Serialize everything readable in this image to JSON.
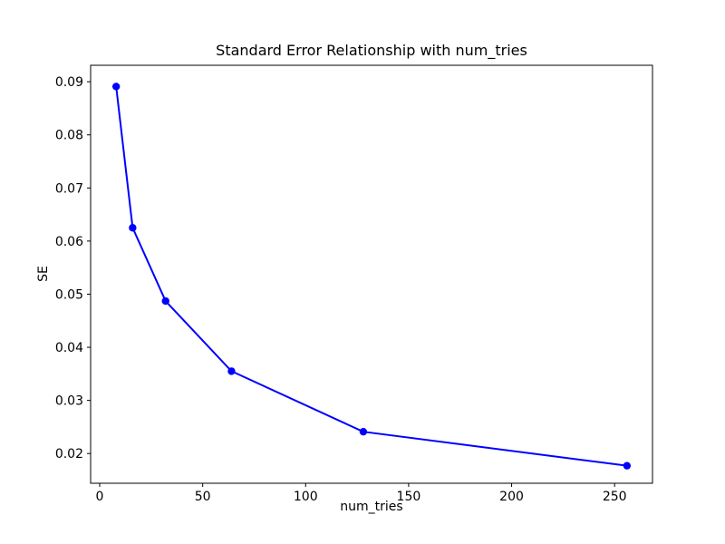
{
  "figure": {
    "background_color": "#ffffff",
    "spine_color": "#000000",
    "text_color": "#000000"
  },
  "chart_data": {
    "type": "line",
    "title": "Standard Error Relationship with num_tries",
    "xlabel": "num_tries",
    "ylabel": "SE",
    "x": [
      8,
      16,
      32,
      64,
      128,
      256
    ],
    "y": [
      0.0891,
      0.0625,
      0.0487,
      0.0355,
      0.0241,
      0.0177
    ],
    "line_color": "#0000ff",
    "marker": "circle",
    "marker_color": "#0000ff",
    "x_ticks": [
      0,
      50,
      100,
      150,
      200,
      250
    ],
    "y_ticks": [
      0.02,
      0.03,
      0.04,
      0.05,
      0.06,
      0.07,
      0.08,
      0.09
    ],
    "y_tick_decimals": 2,
    "xlim": [
      -4.4,
      268.4
    ],
    "ylim": [
      0.0144,
      0.0931
    ],
    "grid": false,
    "legend": null
  }
}
